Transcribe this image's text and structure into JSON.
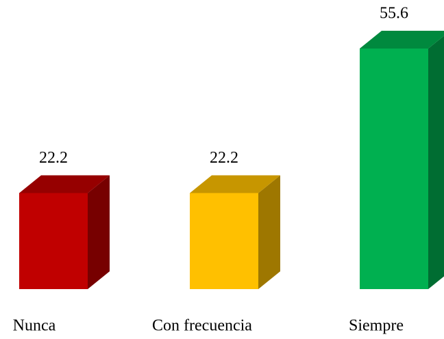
{
  "chart_data": {
    "type": "bar3d",
    "categories": [
      "Nunca",
      "Con frecuencia",
      "Siempre"
    ],
    "values": [
      22.2,
      22.2,
      55.6
    ],
    "colors": [
      "#c00000",
      "#ffc000",
      "#00b050"
    ]
  }
}
